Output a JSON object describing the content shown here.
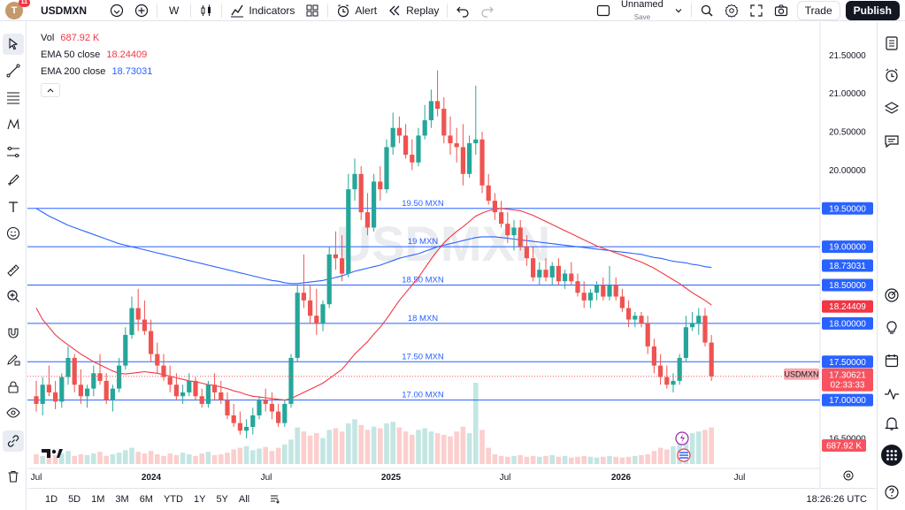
{
  "header": {
    "avatar_letter": "T",
    "notification_count": "11",
    "symbol": "USDMXN",
    "interval": "W",
    "indicators_label": "Indicators",
    "alert_label": "Alert",
    "replay_label": "Replay",
    "layout_name": "Unnamed",
    "layout_status": "Save",
    "trade_label": "Trade",
    "publish_label": "Publish"
  },
  "legend": {
    "vol_label": "Vol",
    "vol_value": "687.92 K",
    "ema50_label": "EMA 50 close",
    "ema50_value": "18.24409",
    "ema200_label": "EMA 200 close",
    "ema200_value": "18.73031"
  },
  "watermark": "USDMXN",
  "horizontal_levels": [
    {
      "label": "19.50 MXN",
      "price": 19.5,
      "axis_label": "19.50000"
    },
    {
      "label": "19 MXN",
      "price": 19.0,
      "axis_label": "19.00000"
    },
    {
      "label": "18.50 MXN",
      "price": 18.5,
      "axis_label": "18.50000"
    },
    {
      "label": "18 MXN",
      "price": 18.0,
      "axis_label": "18.00000"
    },
    {
      "label": "17.50 MXN",
      "price": 17.5,
      "axis_label": "17.50000"
    },
    {
      "label": "17.00 MXN",
      "price": 17.0,
      "axis_label": "17.00000"
    }
  ],
  "price_axis": {
    "ticks": [
      "21.50000",
      "21.00000",
      "20.50000",
      "20.00000",
      "16.50000"
    ],
    "ema200_tag": "18.73031",
    "ema50_tag": "18.24409",
    "symbol_tag": "USDMXN",
    "last_price": "17.30621",
    "countdown": "02:33:33",
    "volume_tag": "687.92 K"
  },
  "time_axis": {
    "labels": [
      "Jul",
      "2024",
      "Jul",
      "2025",
      "Jul",
      "2026",
      "Jul"
    ]
  },
  "bottom": {
    "ranges": [
      "1D",
      "5D",
      "1M",
      "3M",
      "6M",
      "YTD",
      "1Y",
      "5Y",
      "All"
    ],
    "clock": "18:26:26 UTC"
  },
  "colors": {
    "up": "#26a69a",
    "down": "#ef5350",
    "ema50": "#f23645",
    "ema200": "#2962ff",
    "level_line": "#2962ff"
  },
  "chart_data": {
    "type": "candlestick",
    "title": "USDMXN",
    "interval": "W",
    "ylim": [
      16.2,
      21.7
    ],
    "ohlc": [
      [
        17.05,
        17.25,
        16.85,
        16.95
      ],
      [
        16.95,
        17.3,
        16.8,
        17.2
      ],
      [
        17.2,
        17.45,
        17.05,
        17.1
      ],
      [
        17.1,
        17.25,
        16.88,
        16.98
      ],
      [
        16.98,
        17.35,
        16.9,
        17.3
      ],
      [
        17.3,
        17.7,
        17.2,
        17.55
      ],
      [
        17.55,
        17.6,
        17.1,
        17.2
      ],
      [
        17.2,
        17.4,
        16.95,
        17.05
      ],
      [
        17.05,
        17.2,
        16.9,
        17.15
      ],
      [
        17.15,
        17.45,
        17.05,
        17.35
      ],
      [
        17.35,
        17.6,
        17.2,
        17.25
      ],
      [
        17.25,
        17.35,
        16.95,
        17.0
      ],
      [
        17.0,
        17.2,
        16.85,
        17.15
      ],
      [
        17.15,
        17.55,
        17.1,
        17.45
      ],
      [
        17.45,
        17.95,
        17.4,
        17.85
      ],
      [
        17.85,
        18.35,
        17.8,
        18.2
      ],
      [
        18.2,
        18.45,
        17.9,
        18.05
      ],
      [
        18.05,
        18.3,
        17.85,
        17.9
      ],
      [
        17.9,
        18.05,
        17.5,
        17.6
      ],
      [
        17.6,
        17.75,
        17.35,
        17.45
      ],
      [
        17.45,
        17.6,
        17.25,
        17.3
      ],
      [
        17.3,
        17.45,
        17.1,
        17.2
      ],
      [
        17.2,
        17.35,
        17.0,
        17.05
      ],
      [
        17.05,
        17.2,
        16.95,
        17.1
      ],
      [
        17.1,
        17.35,
        17.05,
        17.25
      ],
      [
        17.25,
        17.3,
        17.0,
        17.05
      ],
      [
        17.05,
        17.15,
        16.9,
        16.95
      ],
      [
        16.95,
        17.25,
        16.9,
        17.2
      ],
      [
        17.2,
        17.35,
        17.0,
        17.1
      ],
      [
        17.1,
        17.25,
        16.95,
        17.0
      ],
      [
        17.0,
        17.1,
        16.75,
        16.8
      ],
      [
        16.8,
        16.95,
        16.65,
        16.7
      ],
      [
        16.7,
        16.85,
        16.55,
        16.6
      ],
      [
        16.6,
        16.75,
        16.5,
        16.65
      ],
      [
        16.65,
        16.9,
        16.55,
        16.8
      ],
      [
        16.8,
        17.05,
        16.75,
        17.0
      ],
      [
        17.0,
        17.15,
        16.85,
        16.95
      ],
      [
        16.95,
        17.1,
        16.75,
        16.85
      ],
      [
        16.85,
        16.95,
        16.65,
        16.7
      ],
      [
        16.7,
        17.0,
        16.65,
        16.95
      ],
      [
        16.95,
        17.6,
        16.9,
        17.55
      ],
      [
        17.55,
        18.5,
        17.5,
        18.4
      ],
      [
        18.4,
        18.9,
        18.2,
        18.3
      ],
      [
        18.3,
        18.5,
        18.0,
        18.1
      ],
      [
        18.1,
        18.45,
        17.85,
        18.0
      ],
      [
        18.0,
        18.3,
        17.9,
        18.25
      ],
      [
        18.25,
        19.0,
        18.2,
        18.9
      ],
      [
        18.9,
        19.2,
        18.7,
        18.85
      ],
      [
        18.85,
        19.15,
        18.55,
        18.65
      ],
      [
        18.65,
        19.95,
        18.6,
        19.75
      ],
      [
        19.75,
        20.15,
        19.6,
        19.95
      ],
      [
        19.95,
        20.05,
        19.35,
        19.45
      ],
      [
        19.45,
        19.7,
        19.15,
        19.25
      ],
      [
        19.25,
        19.95,
        19.2,
        19.85
      ],
      [
        19.85,
        20.05,
        19.6,
        19.75
      ],
      [
        19.75,
        20.4,
        19.7,
        20.3
      ],
      [
        20.3,
        20.75,
        20.2,
        20.55
      ],
      [
        20.55,
        20.7,
        20.35,
        20.45
      ],
      [
        20.45,
        20.6,
        20.15,
        20.2
      ],
      [
        20.2,
        20.4,
        20.0,
        20.1
      ],
      [
        20.1,
        20.55,
        20.05,
        20.45
      ],
      [
        20.45,
        20.85,
        20.4,
        20.65
      ],
      [
        20.65,
        21.05,
        20.55,
        20.9
      ],
      [
        20.9,
        21.3,
        20.7,
        20.8
      ],
      [
        20.8,
        20.95,
        20.35,
        20.45
      ],
      [
        20.45,
        20.7,
        20.2,
        20.35
      ],
      [
        20.35,
        20.55,
        20.1,
        20.3
      ],
      [
        20.3,
        20.6,
        19.8,
        19.95
      ],
      [
        19.95,
        20.45,
        19.9,
        20.35
      ],
      [
        20.35,
        21.1,
        20.2,
        20.4
      ],
      [
        20.4,
        20.5,
        19.7,
        19.8
      ],
      [
        19.8,
        19.95,
        19.55,
        19.6
      ],
      [
        19.6,
        19.7,
        19.35,
        19.45
      ],
      [
        19.45,
        19.6,
        19.25,
        19.3
      ],
      [
        19.3,
        19.45,
        19.05,
        19.15
      ],
      [
        19.15,
        19.35,
        18.95,
        19.25
      ],
      [
        19.25,
        19.35,
        18.95,
        19.0
      ],
      [
        19.0,
        19.15,
        18.75,
        18.85
      ],
      [
        18.85,
        19.0,
        18.55,
        18.6
      ],
      [
        18.6,
        18.8,
        18.5,
        18.7
      ],
      [
        18.7,
        18.85,
        18.55,
        18.6
      ],
      [
        18.6,
        18.8,
        18.5,
        18.75
      ],
      [
        18.75,
        18.85,
        18.5,
        18.55
      ],
      [
        18.55,
        18.7,
        18.45,
        18.65
      ],
      [
        18.65,
        18.8,
        18.5,
        18.55
      ],
      [
        18.55,
        18.65,
        18.35,
        18.4
      ],
      [
        18.4,
        18.55,
        18.2,
        18.3
      ],
      [
        18.3,
        18.45,
        18.2,
        18.4
      ],
      [
        18.4,
        18.55,
        18.3,
        18.5
      ],
      [
        18.5,
        18.6,
        18.3,
        18.35
      ],
      [
        18.35,
        18.75,
        18.3,
        18.5
      ],
      [
        18.5,
        18.6,
        18.3,
        18.35
      ],
      [
        18.35,
        18.45,
        18.15,
        18.2
      ],
      [
        18.2,
        18.3,
        17.95,
        18.05
      ],
      [
        18.05,
        18.15,
        17.95,
        18.1
      ],
      [
        18.1,
        18.15,
        17.95,
        18.0
      ],
      [
        18.0,
        18.1,
        17.6,
        17.7
      ],
      [
        17.7,
        17.8,
        17.35,
        17.45
      ],
      [
        17.45,
        17.6,
        17.2,
        17.3
      ],
      [
        17.3,
        17.45,
        17.15,
        17.2
      ],
      [
        17.2,
        17.35,
        17.1,
        17.25
      ],
      [
        17.25,
        17.6,
        17.2,
        17.55
      ],
      [
        17.55,
        18.1,
        17.5,
        17.95
      ],
      [
        17.95,
        18.15,
        17.9,
        18.0
      ],
      [
        18.0,
        18.2,
        17.85,
        18.1
      ],
      [
        18.1,
        18.2,
        17.7,
        17.75
      ],
      [
        17.75,
        17.85,
        17.25,
        17.31
      ]
    ],
    "volume_relative": [
      0.12,
      0.1,
      0.14,
      0.11,
      0.13,
      0.16,
      0.1,
      0.12,
      0.11,
      0.13,
      0.15,
      0.1,
      0.12,
      0.14,
      0.17,
      0.2,
      0.15,
      0.13,
      0.16,
      0.12,
      0.1,
      0.13,
      0.11,
      0.14,
      0.12,
      0.1,
      0.13,
      0.15,
      0.11,
      0.12,
      0.14,
      0.18,
      0.2,
      0.22,
      0.17,
      0.19,
      0.21,
      0.16,
      0.2,
      0.24,
      0.3,
      0.45,
      0.4,
      0.35,
      0.38,
      0.32,
      0.42,
      0.44,
      0.4,
      0.5,
      0.55,
      0.48,
      0.42,
      0.46,
      0.44,
      0.5,
      0.52,
      0.45,
      0.4,
      0.36,
      0.42,
      0.44,
      0.4,
      0.38,
      0.36,
      0.34,
      0.4,
      0.46,
      0.38,
      1.0,
      0.42,
      0.2,
      0.12,
      0.1,
      0.09,
      0.1,
      0.11,
      0.09,
      0.1,
      0.09,
      0.1,
      0.11,
      0.09,
      0.1,
      0.08,
      0.09,
      0.1,
      0.09,
      0.08,
      0.09,
      0.1,
      0.09,
      0.08,
      0.09,
      0.1,
      0.11,
      0.12,
      0.16,
      0.2,
      0.18,
      0.22,
      0.3,
      0.36,
      0.38,
      0.4,
      0.42,
      0.45
    ],
    "ema50": [
      18.2,
      18.05,
      17.95,
      17.85,
      17.78,
      17.72,
      17.66,
      17.6,
      17.55,
      17.5,
      17.46,
      17.42,
      17.38,
      17.35,
      17.34,
      17.35,
      17.36,
      17.37,
      17.36,
      17.35,
      17.33,
      17.31,
      17.29,
      17.27,
      17.25,
      17.24,
      17.22,
      17.2,
      17.19,
      17.17,
      17.15,
      17.12,
      17.1,
      17.07,
      17.05,
      17.04,
      17.03,
      17.02,
      17.01,
      17.0,
      17.02,
      17.06,
      17.1,
      17.14,
      17.18,
      17.22,
      17.28,
      17.34,
      17.4,
      17.5,
      17.6,
      17.68,
      17.76,
      17.86,
      17.95,
      18.06,
      18.18,
      18.3,
      18.4,
      18.5,
      18.6,
      18.72,
      18.84,
      18.95,
      19.05,
      19.13,
      19.2,
      19.26,
      19.33,
      19.4,
      19.44,
      19.47,
      19.49,
      19.5,
      19.49,
      19.48,
      19.47,
      19.44,
      19.41,
      19.37,
      19.33,
      19.29,
      19.25,
      19.21,
      19.17,
      19.13,
      19.09,
      19.05,
      19.01,
      18.98,
      18.95,
      18.92,
      18.89,
      18.86,
      18.83,
      18.8,
      18.76,
      18.72,
      18.67,
      18.62,
      18.57,
      18.52,
      18.46,
      18.4,
      18.35,
      18.3,
      18.24
    ],
    "ema200": [
      19.5,
      19.45,
      19.4,
      19.36,
      19.32,
      19.28,
      19.25,
      19.22,
      19.19,
      19.16,
      19.13,
      19.1,
      19.07,
      19.04,
      19.02,
      19.0,
      18.98,
      18.96,
      18.94,
      18.92,
      18.9,
      18.88,
      18.86,
      18.84,
      18.82,
      18.8,
      18.78,
      18.76,
      18.74,
      18.72,
      18.7,
      18.68,
      18.66,
      18.64,
      18.62,
      18.6,
      18.58,
      18.56,
      18.55,
      18.53,
      18.52,
      18.52,
      18.53,
      18.54,
      18.55,
      18.56,
      18.58,
      18.6,
      18.62,
      18.65,
      18.68,
      18.7,
      18.72,
      18.74,
      18.76,
      18.79,
      18.82,
      18.85,
      18.87,
      18.89,
      18.91,
      18.94,
      18.97,
      19.0,
      19.02,
      19.04,
      19.06,
      19.08,
      19.1,
      19.12,
      19.13,
      19.13,
      19.13,
      19.12,
      19.11,
      19.1,
      19.09,
      19.08,
      19.07,
      19.06,
      19.05,
      19.04,
      19.03,
      19.02,
      19.01,
      19.0,
      18.99,
      18.98,
      18.97,
      18.96,
      18.95,
      18.94,
      18.93,
      18.92,
      18.91,
      18.9,
      18.88,
      18.86,
      18.85,
      18.83,
      18.81,
      18.8,
      18.79,
      18.77,
      18.76,
      18.74,
      18.73
    ]
  }
}
